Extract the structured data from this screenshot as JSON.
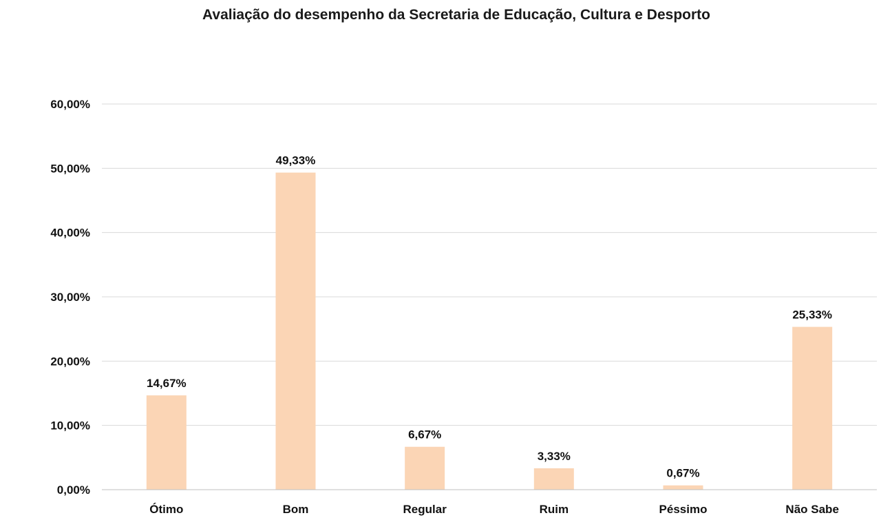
{
  "chart_data": {
    "type": "bar",
    "title": "Avaliação do desempenho da Secretaria de Educação, Cultura e Desporto",
    "xlabel": "",
    "ylabel": "",
    "categories": [
      "Ótimo",
      "Bom",
      "Regular",
      "Ruim",
      "Péssimo",
      "Não Sabe"
    ],
    "values": [
      14.67,
      49.33,
      6.67,
      3.33,
      0.67,
      25.33
    ],
    "value_labels": [
      "14,67%",
      "49,33%",
      "6,67%",
      "3,33%",
      "0,67%",
      "25,33%"
    ],
    "ylim": [
      0,
      60
    ],
    "yticks": [
      0,
      10,
      20,
      30,
      40,
      50,
      60
    ],
    "ytick_labels": [
      "0,00%",
      "10,00%",
      "20,00%",
      "30,00%",
      "40,00%",
      "50,00%",
      "60,00%"
    ],
    "grid": true,
    "bar_color": "#fbd5b5"
  }
}
